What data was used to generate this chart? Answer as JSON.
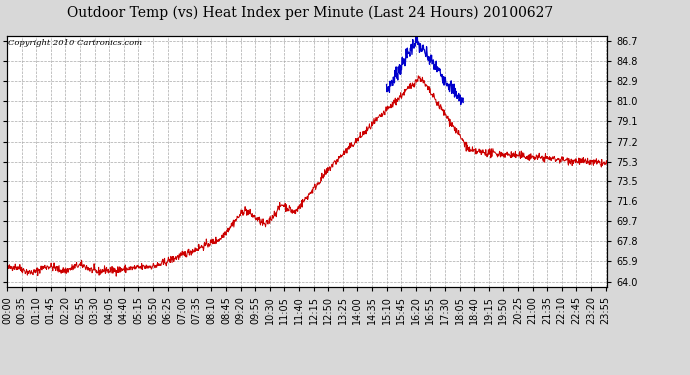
{
  "title": "Outdoor Temp (vs) Heat Index per Minute (Last 24 Hours) 20100627",
  "copyright": "Copyright 2010 Cartronics.com",
  "y_ticks": [
    64.0,
    65.9,
    67.8,
    69.7,
    71.6,
    73.5,
    75.3,
    77.2,
    79.1,
    81.0,
    82.9,
    84.8,
    86.7
  ],
  "ylim": [
    63.5,
    87.2
  ],
  "background_color": "#d8d8d8",
  "plot_bg_color": "#ffffff",
  "grid_color": "#aaaaaa",
  "red_color": "#cc0000",
  "blue_color": "#0000cc",
  "title_fontsize": 10,
  "tick_fontsize": 7,
  "x_tick_step": 35
}
